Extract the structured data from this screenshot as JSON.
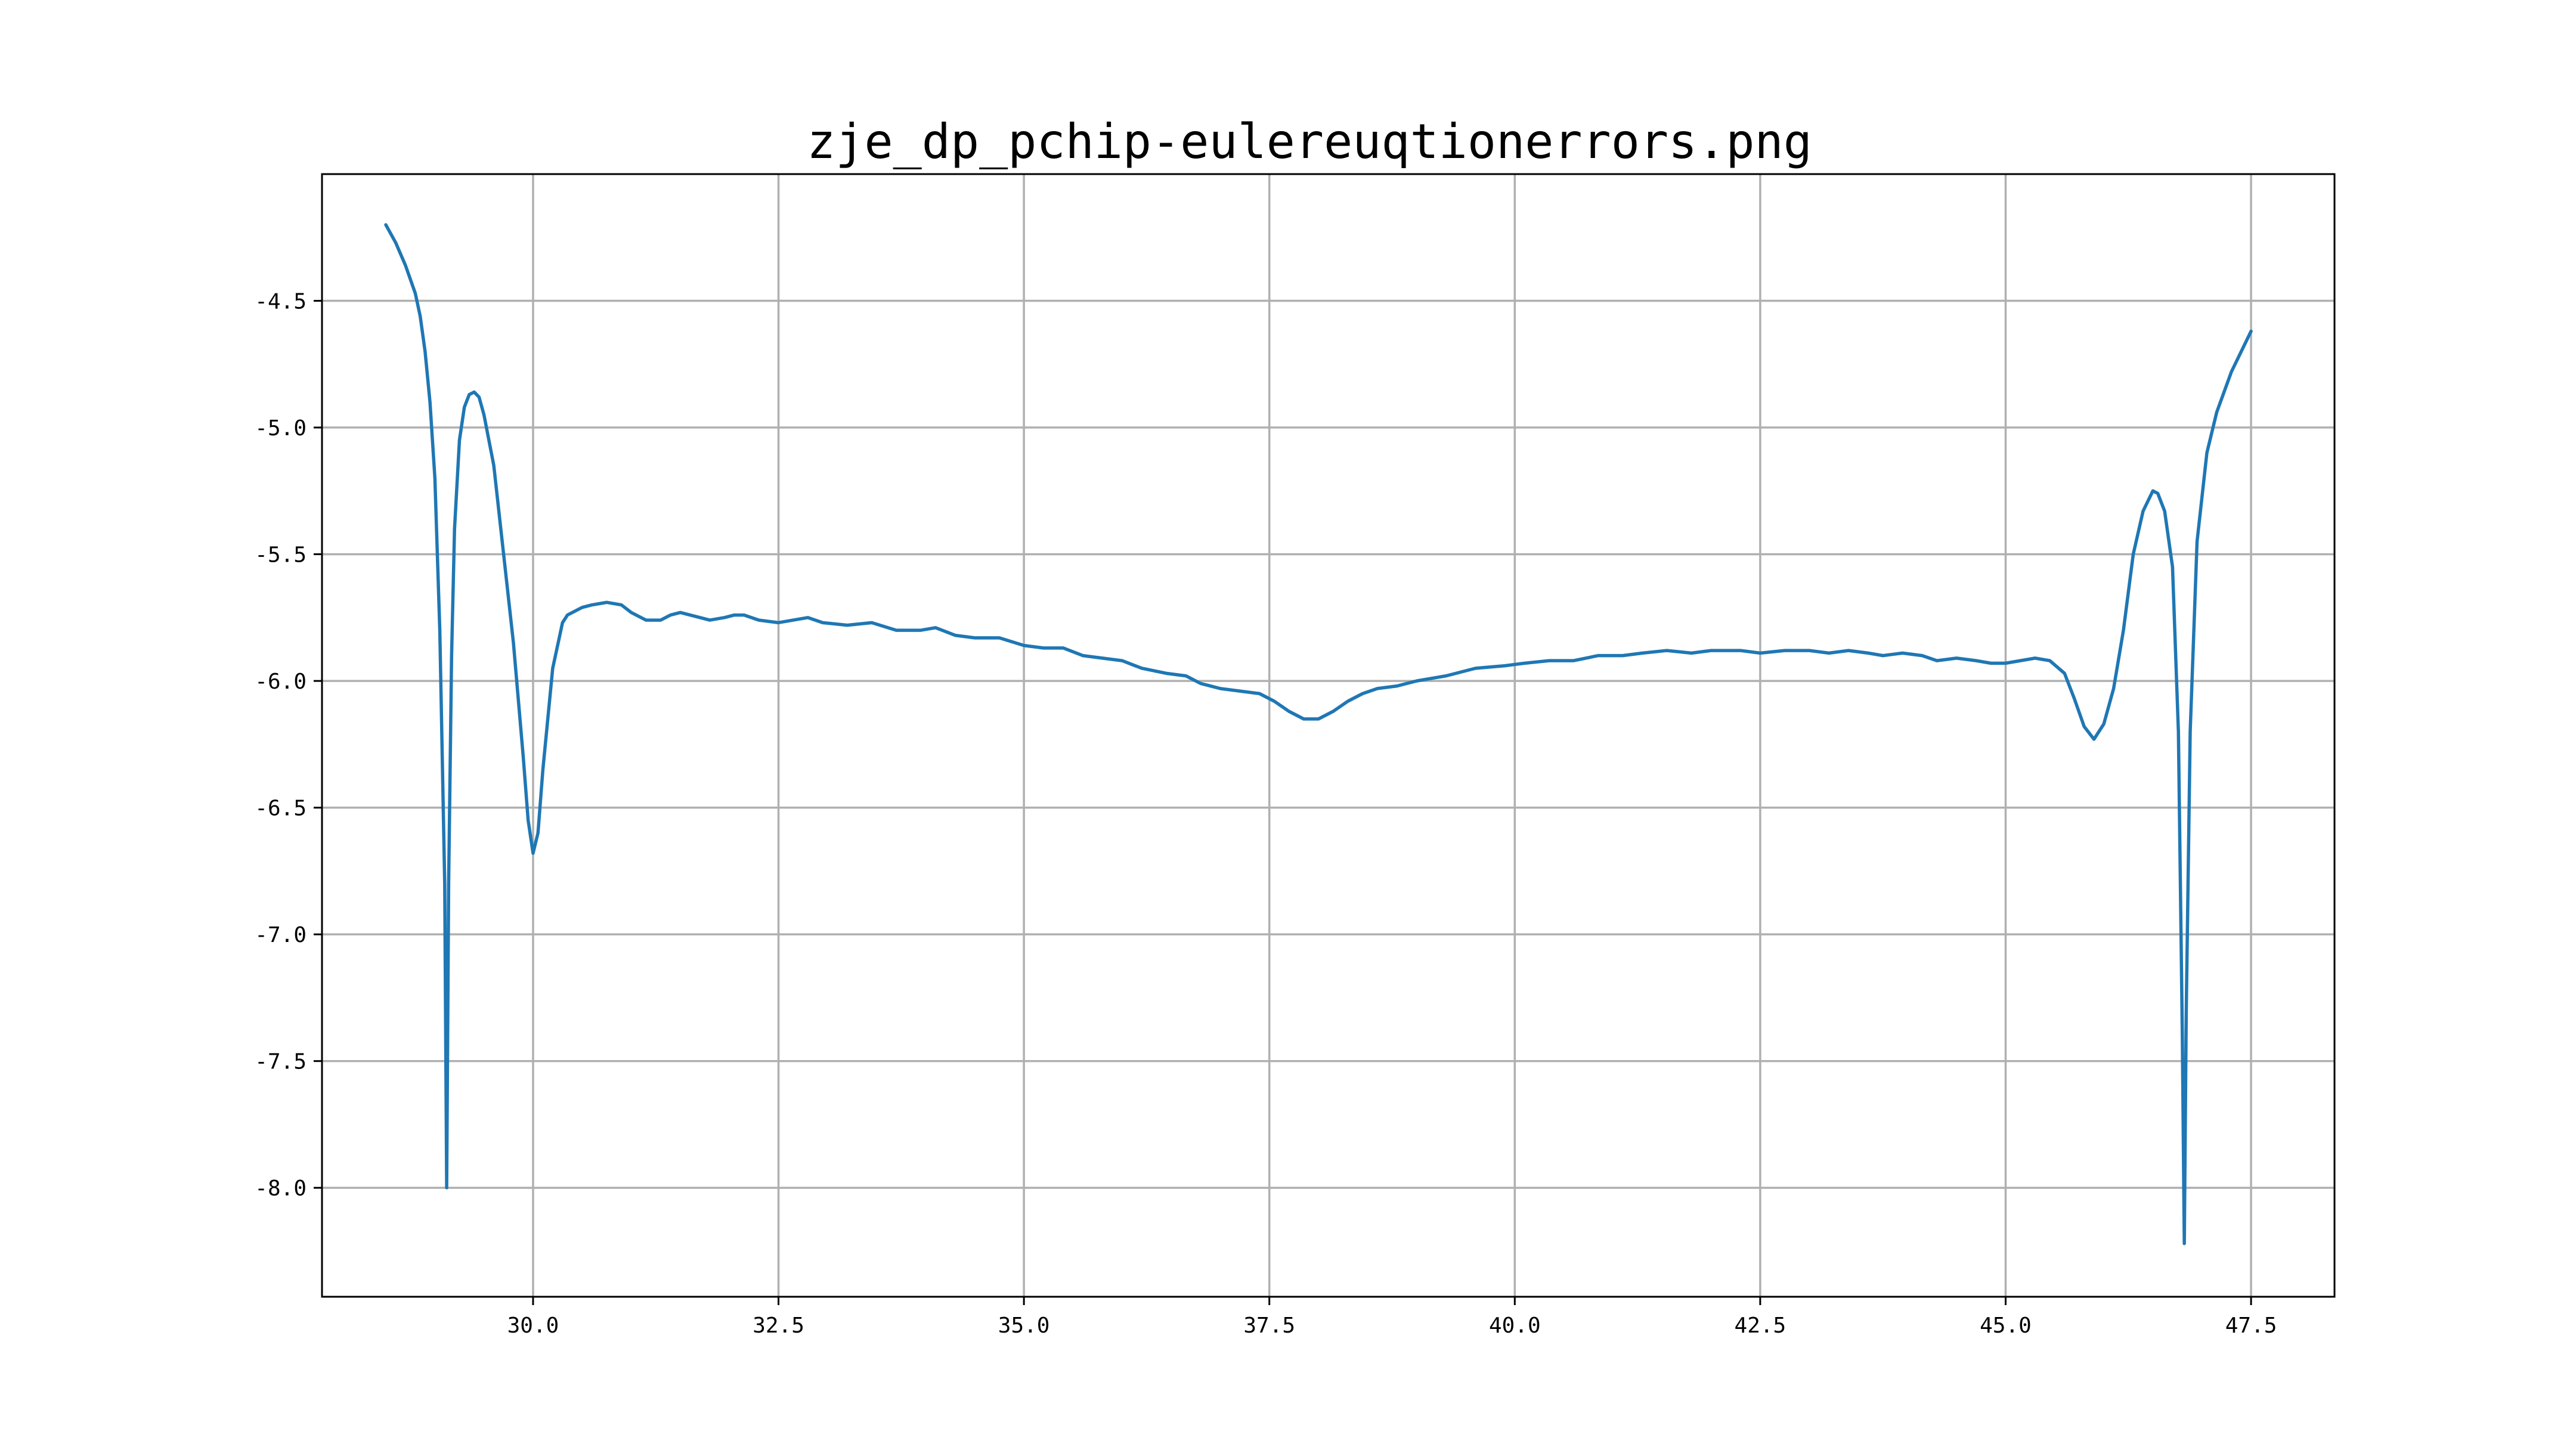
{
  "chart_data": {
    "type": "line",
    "title": "zje_dp_pchip-eulereuqtionerrors.png",
    "xlabel": "",
    "ylabel": "",
    "xlim": [
      27.85,
      48.35
    ],
    "ylim": [
      -8.43,
      -4.0
    ],
    "x_ticks": [
      30.0,
      32.5,
      35.0,
      37.5,
      40.0,
      42.5,
      45.0,
      47.5
    ],
    "x_tick_labels": [
      "30.0",
      "32.5",
      "35.0",
      "37.5",
      "40.0",
      "42.5",
      "45.0",
      "47.5"
    ],
    "y_ticks": [
      -4.5,
      -5.0,
      -5.5,
      -6.0,
      -6.5,
      -7.0,
      -7.5,
      -8.0
    ],
    "y_tick_labels": [
      "-4.5",
      "-5.0",
      "-5.5",
      "-6.0",
      "-6.5",
      "-7.0",
      "-7.5",
      "-8.0"
    ],
    "grid": true,
    "legend": "none",
    "color": "#1f77b4",
    "series": [
      {
        "points": [
          [
            28.5,
            -4.2
          ],
          [
            28.6,
            -4.27
          ],
          [
            28.7,
            -4.36
          ],
          [
            28.8,
            -4.47
          ],
          [
            28.85,
            -4.56
          ],
          [
            28.9,
            -4.7
          ],
          [
            28.95,
            -4.9
          ],
          [
            29.0,
            -5.2
          ],
          [
            29.05,
            -5.8
          ],
          [
            29.1,
            -6.8
          ],
          [
            29.12,
            -8.0
          ],
          [
            29.14,
            -6.8
          ],
          [
            29.17,
            -5.9
          ],
          [
            29.2,
            -5.4
          ],
          [
            29.25,
            -5.05
          ],
          [
            29.3,
            -4.92
          ],
          [
            29.35,
            -4.87
          ],
          [
            29.4,
            -4.86
          ],
          [
            29.45,
            -4.88
          ],
          [
            29.5,
            -4.95
          ],
          [
            29.6,
            -5.15
          ],
          [
            29.7,
            -5.5
          ],
          [
            29.8,
            -5.85
          ],
          [
            29.9,
            -6.3
          ],
          [
            29.95,
            -6.55
          ],
          [
            30.0,
            -6.68
          ],
          [
            30.05,
            -6.6
          ],
          [
            30.1,
            -6.35
          ],
          [
            30.2,
            -5.95
          ],
          [
            30.3,
            -5.77
          ],
          [
            30.35,
            -5.74
          ],
          [
            30.5,
            -5.71
          ],
          [
            30.6,
            -5.7
          ],
          [
            30.75,
            -5.69
          ],
          [
            30.9,
            -5.7
          ],
          [
            31.0,
            -5.73
          ],
          [
            31.15,
            -5.76
          ],
          [
            31.3,
            -5.76
          ],
          [
            31.4,
            -5.74
          ],
          [
            31.5,
            -5.73
          ],
          [
            31.6,
            -5.74
          ],
          [
            31.8,
            -5.76
          ],
          [
            31.95,
            -5.75
          ],
          [
            32.05,
            -5.74
          ],
          [
            32.15,
            -5.74
          ],
          [
            32.3,
            -5.76
          ],
          [
            32.5,
            -5.77
          ],
          [
            32.65,
            -5.76
          ],
          [
            32.8,
            -5.75
          ],
          [
            32.95,
            -5.77
          ],
          [
            33.2,
            -5.78
          ],
          [
            33.45,
            -5.77
          ],
          [
            33.7,
            -5.8
          ],
          [
            33.95,
            -5.8
          ],
          [
            34.1,
            -5.79
          ],
          [
            34.3,
            -5.82
          ],
          [
            34.5,
            -5.83
          ],
          [
            34.75,
            -5.83
          ],
          [
            35.0,
            -5.86
          ],
          [
            35.2,
            -5.87
          ],
          [
            35.4,
            -5.87
          ],
          [
            35.6,
            -5.9
          ],
          [
            35.8,
            -5.91
          ],
          [
            36.0,
            -5.92
          ],
          [
            36.2,
            -5.95
          ],
          [
            36.45,
            -5.97
          ],
          [
            36.65,
            -5.98
          ],
          [
            36.8,
            -6.01
          ],
          [
            37.0,
            -6.03
          ],
          [
            37.2,
            -6.04
          ],
          [
            37.4,
            -6.05
          ],
          [
            37.55,
            -6.08
          ],
          [
            37.7,
            -6.12
          ],
          [
            37.85,
            -6.15
          ],
          [
            38.0,
            -6.15
          ],
          [
            38.15,
            -6.12
          ],
          [
            38.3,
            -6.08
          ],
          [
            38.45,
            -6.05
          ],
          [
            38.6,
            -6.03
          ],
          [
            38.8,
            -6.02
          ],
          [
            39.0,
            -6.0
          ],
          [
            39.3,
            -5.98
          ],
          [
            39.6,
            -5.95
          ],
          [
            39.9,
            -5.94
          ],
          [
            40.1,
            -5.93
          ],
          [
            40.35,
            -5.92
          ],
          [
            40.6,
            -5.92
          ],
          [
            40.85,
            -5.9
          ],
          [
            41.1,
            -5.9
          ],
          [
            41.3,
            -5.89
          ],
          [
            41.55,
            -5.88
          ],
          [
            41.8,
            -5.89
          ],
          [
            42.0,
            -5.88
          ],
          [
            42.3,
            -5.88
          ],
          [
            42.5,
            -5.89
          ],
          [
            42.75,
            -5.88
          ],
          [
            43.0,
            -5.88
          ],
          [
            43.2,
            -5.89
          ],
          [
            43.4,
            -5.88
          ],
          [
            43.6,
            -5.89
          ],
          [
            43.75,
            -5.9
          ],
          [
            43.95,
            -5.89
          ],
          [
            44.15,
            -5.9
          ],
          [
            44.3,
            -5.92
          ],
          [
            44.5,
            -5.91
          ],
          [
            44.7,
            -5.92
          ],
          [
            44.85,
            -5.93
          ],
          [
            45.0,
            -5.93
          ],
          [
            45.15,
            -5.92
          ],
          [
            45.3,
            -5.91
          ],
          [
            45.45,
            -5.92
          ],
          [
            45.6,
            -5.97
          ],
          [
            45.7,
            -6.07
          ],
          [
            45.8,
            -6.18
          ],
          [
            45.9,
            -6.23
          ],
          [
            46.0,
            -6.17
          ],
          [
            46.1,
            -6.03
          ],
          [
            46.2,
            -5.8
          ],
          [
            46.3,
            -5.5
          ],
          [
            46.4,
            -5.33
          ],
          [
            46.5,
            -5.25
          ],
          [
            46.55,
            -5.26
          ],
          [
            46.62,
            -5.33
          ],
          [
            46.7,
            -5.55
          ],
          [
            46.76,
            -6.2
          ],
          [
            46.8,
            -7.4
          ],
          [
            46.82,
            -8.22
          ],
          [
            46.84,
            -7.3
          ],
          [
            46.88,
            -6.2
          ],
          [
            46.95,
            -5.45
          ],
          [
            47.05,
            -5.1
          ],
          [
            47.15,
            -4.94
          ],
          [
            47.3,
            -4.78
          ],
          [
            47.5,
            -4.62
          ]
        ]
      }
    ]
  }
}
